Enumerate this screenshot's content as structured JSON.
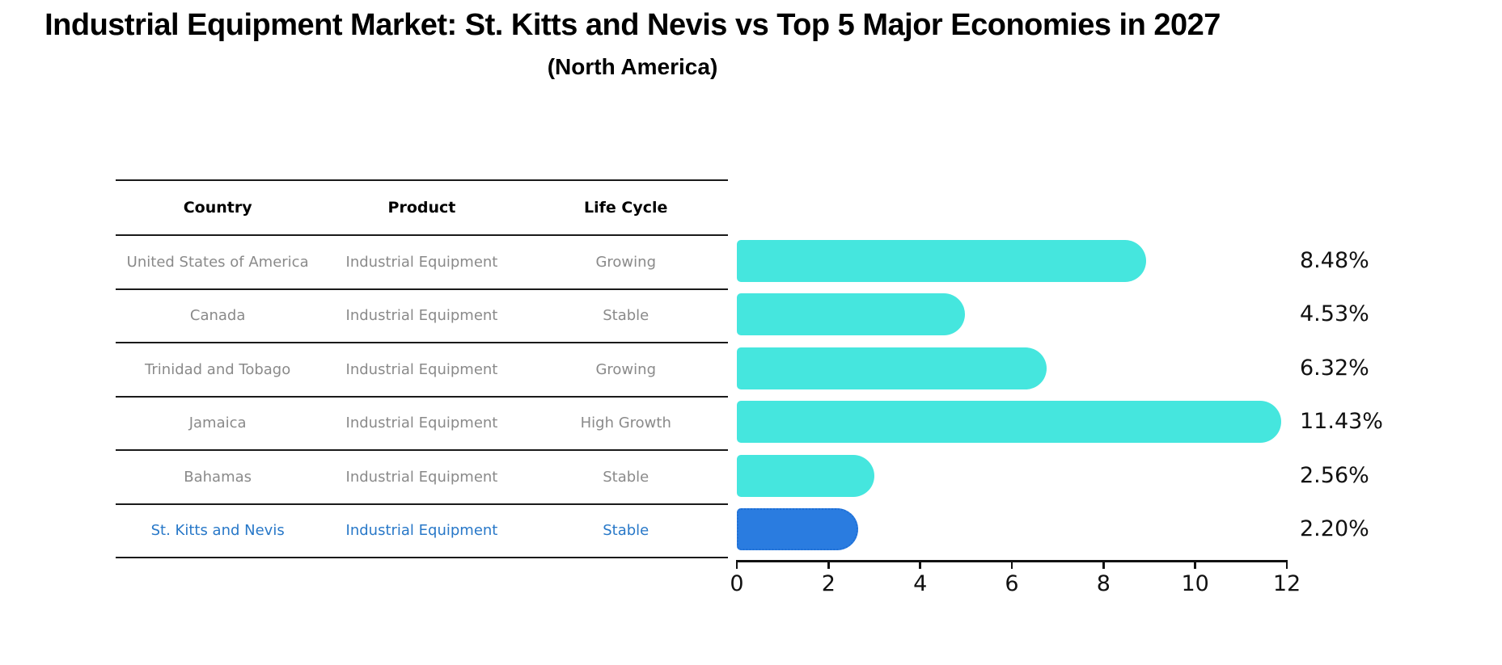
{
  "chart_data": {
    "type": "bar",
    "orientation": "horizontal",
    "title": "Industrial Equipment Market: St. Kitts and Nevis vs Top 5 Major Economies in 2027",
    "subtitle": "(North America)",
    "categories": [
      "United States of America",
      "Canada",
      "Trinidad and Tobago",
      "Jamaica",
      "Bahamas",
      "St. Kitts and Nevis"
    ],
    "values": [
      8.48,
      4.53,
      6.32,
      11.43,
      2.56,
      2.2
    ],
    "value_labels": [
      "8.48%",
      "4.53%",
      "6.32%",
      "11.43%",
      "2.56%",
      "2.20%"
    ],
    "xlim": [
      0,
      12
    ],
    "xticks": [
      "0",
      "2",
      "4",
      "6",
      "8",
      "10",
      "12"
    ],
    "grid": false,
    "legend": false,
    "highlight_index": 5,
    "highlight_category": "St. Kitts and Nevis"
  },
  "table": {
    "headers": [
      "Country",
      "Product",
      "Life Cycle"
    ],
    "rows": [
      {
        "country": "United States of America",
        "product": "Industrial Equipment",
        "life_cycle": "Growing"
      },
      {
        "country": "Canada",
        "product": "Industrial Equipment",
        "life_cycle": "Stable"
      },
      {
        "country": "Trinidad and Tobago",
        "product": "Industrial Equipment",
        "life_cycle": "Growing"
      },
      {
        "country": "Jamaica",
        "product": "Industrial Equipment",
        "life_cycle": "High Growth"
      },
      {
        "country": "Bahamas",
        "product": "Industrial Equipment",
        "life_cycle": "Stable"
      },
      {
        "country": "St. Kitts and Nevis",
        "product": "Industrial Equipment",
        "life_cycle": "Stable"
      }
    ]
  },
  "colors": {
    "bar": "#45E6DE",
    "highlight_bar": "#2A7CE0",
    "highlight_border": "#1E6FD6",
    "highlight_text": "#2878C8",
    "row_text": "#8A8A8A",
    "text": "#111111"
  }
}
